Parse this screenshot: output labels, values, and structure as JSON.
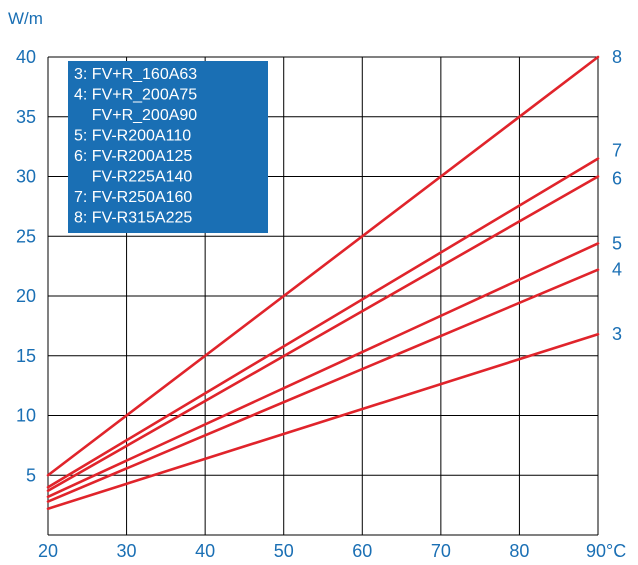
{
  "chart_data": {
    "type": "line",
    "ylabel": "W/m",
    "x_ticks": [
      "20",
      "30",
      "40",
      "50",
      "60",
      "70",
      "80",
      "90°C"
    ],
    "y_ticks": [
      "5",
      "10",
      "15",
      "20",
      "25",
      "30",
      "35",
      "40"
    ],
    "xlim": [
      20,
      90
    ],
    "ylim": [
      0,
      40
    ],
    "grid": true,
    "legend": {
      "placement": "top-left",
      "lines": [
        "3: FV+R_160A63",
        "4: FV+R_200A75",
        "    FV+R_200A90",
        "5: FV-R200A110",
        "6: FV-R200A125",
        "    FV-R225A140",
        "7: FV-R250A160",
        "8: FV-R315A225"
      ]
    },
    "series": [
      {
        "name": "3",
        "x": [
          20,
          90
        ],
        "y": [
          2.2,
          16.8
        ]
      },
      {
        "name": "4",
        "x": [
          20,
          90
        ],
        "y": [
          2.8,
          22.2
        ]
      },
      {
        "name": "5",
        "x": [
          20,
          90
        ],
        "y": [
          3.2,
          24.4
        ]
      },
      {
        "name": "6",
        "x": [
          20,
          90
        ],
        "y": [
          3.7,
          30.0
        ]
      },
      {
        "name": "7",
        "x": [
          20,
          90
        ],
        "y": [
          4.0,
          31.5
        ]
      },
      {
        "name": "8",
        "x": [
          20,
          90
        ],
        "y": [
          5.0,
          40.0
        ]
      }
    ]
  },
  "colors": {
    "line": "#e0242b",
    "grid": "#000000",
    "text": "#1a6fb4",
    "legend_bg": "#1a6fb4",
    "legend_text": "#ffffff"
  }
}
